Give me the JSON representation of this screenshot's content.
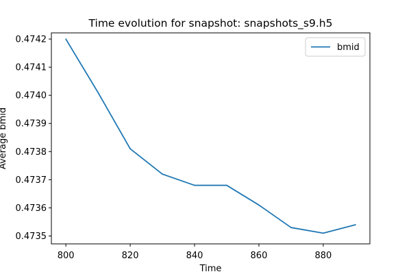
{
  "chart_data": {
    "type": "line",
    "title": "Time evolution for snapshot: snapshots_s9.h5",
    "xlabel": "Time",
    "ylabel": "Average bmid",
    "xlim": [
      795.5,
      894.5
    ],
    "ylim": [
      0.473472,
      0.474222
    ],
    "x_ticks": [
      800,
      820,
      840,
      860,
      880
    ],
    "y_ticks": [
      0.4735,
      0.4736,
      0.4737,
      0.4738,
      0.4739,
      0.474,
      0.4741,
      0.4742
    ],
    "x_tick_labels": [
      "800",
      "820",
      "840",
      "860",
      "880"
    ],
    "y_tick_labels": [
      "0.4735",
      "0.4736",
      "0.4737",
      "0.4738",
      "0.4739",
      "0.4740",
      "0.4741",
      "0.4742"
    ],
    "grid": false,
    "legend_position": "top-right",
    "series": [
      {
        "name": "bmid",
        "color": "#1f77b4",
        "x": [
          800,
          810,
          820,
          830,
          840,
          850,
          860,
          870,
          880,
          890
        ],
        "y": [
          0.4742,
          0.47401,
          0.47381,
          0.47372,
          0.47368,
          0.47368,
          0.47361,
          0.47353,
          0.47351,
          0.47354
        ]
      }
    ]
  }
}
